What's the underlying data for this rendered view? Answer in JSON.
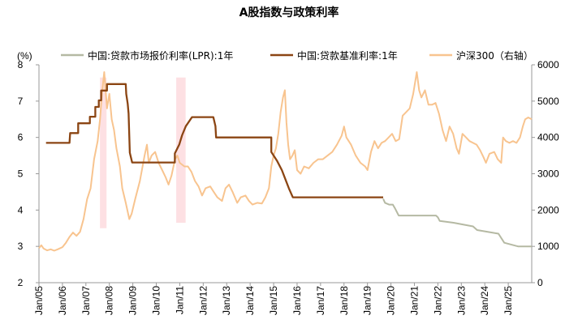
{
  "chart_data": {
    "type": "line",
    "title": "A股指数与政策利率",
    "y_left_unit": "(%)",
    "y_left_range": [
      2,
      8
    ],
    "y_left_ticks": [
      "2",
      "3",
      "4",
      "5",
      "6",
      "7",
      "8"
    ],
    "y_right_range": [
      0,
      6000
    ],
    "y_right_ticks": [
      "0",
      "1000",
      "2000",
      "3000",
      "4000",
      "5000",
      "6000"
    ],
    "x_range": [
      2005.0,
      2026.0
    ],
    "x_ticks": [
      {
        "x": 2005.0,
        "label": "Jan/05"
      },
      {
        "x": 2006.0,
        "label": "Jan/06"
      },
      {
        "x": 2007.0,
        "label": "Jan/07"
      },
      {
        "x": 2008.0,
        "label": "Jan/08"
      },
      {
        "x": 2009.0,
        "label": "Jan/09"
      },
      {
        "x": 2010.0,
        "label": "Jan/10"
      },
      {
        "x": 2011.0,
        "label": "Jan/11"
      },
      {
        "x": 2012.0,
        "label": "Jan/12"
      },
      {
        "x": 2013.0,
        "label": "Jan/13"
      },
      {
        "x": 2014.0,
        "label": "Jan/14"
      },
      {
        "x": 2015.0,
        "label": "Jan/15"
      },
      {
        "x": 2016.0,
        "label": "Jan/16"
      },
      {
        "x": 2017.0,
        "label": "Jan/17"
      },
      {
        "x": 2018.0,
        "label": "Jan/18"
      },
      {
        "x": 2019.0,
        "label": "Jan/19"
      },
      {
        "x": 2020.0,
        "label": "Jan/20"
      },
      {
        "x": 2021.0,
        "label": "Jan/21"
      },
      {
        "x": 2022.0,
        "label": "Jan/22"
      },
      {
        "x": 2023.0,
        "label": "Jan/23"
      },
      {
        "x": 2024.0,
        "label": "Jan/24"
      },
      {
        "x": 2025.0,
        "label": "Jan/25"
      }
    ],
    "shaded_periods": [
      {
        "start": 2007.6,
        "end": 2007.88
      },
      {
        "start": 2010.85,
        "end": 2011.25
      }
    ],
    "shade_color": "#fde0e3",
    "series": [
      {
        "name": "中国:贷款市场报价利率(LPR):1年",
        "axis": "left",
        "color": "#b5b9a3",
        "points": [
          [
            2019.67,
            4.31
          ],
          [
            2019.75,
            4.2
          ],
          [
            2019.92,
            4.15
          ],
          [
            2020.08,
            4.15
          ],
          [
            2020.17,
            4.05
          ],
          [
            2020.33,
            3.85
          ],
          [
            2021.92,
            3.85
          ],
          [
            2022.0,
            3.8
          ],
          [
            2022.08,
            3.7
          ],
          [
            2022.67,
            3.65
          ],
          [
            2023.5,
            3.55
          ],
          [
            2023.67,
            3.45
          ],
          [
            2024.58,
            3.35
          ],
          [
            2024.83,
            3.1
          ],
          [
            2025.42,
            3.0
          ],
          [
            2026.0,
            3.0
          ]
        ]
      },
      {
        "name": "中国:贷款基准利率:1年",
        "axis": "left",
        "color": "#8b4513",
        "points": [
          [
            2005.3,
            5.85
          ],
          [
            2006.3,
            5.85
          ],
          [
            2006.33,
            6.12
          ],
          [
            2006.67,
            6.12
          ],
          [
            2006.67,
            6.39
          ],
          [
            2007.17,
            6.39
          ],
          [
            2007.17,
            6.57
          ],
          [
            2007.4,
            6.57
          ],
          [
            2007.4,
            6.84
          ],
          [
            2007.55,
            6.84
          ],
          [
            2007.55,
            7.02
          ],
          [
            2007.65,
            7.02
          ],
          [
            2007.65,
            7.29
          ],
          [
            2007.9,
            7.29
          ],
          [
            2007.9,
            7.47
          ],
          [
            2008.7,
            7.47
          ],
          [
            2008.72,
            7.2
          ],
          [
            2008.78,
            6.93
          ],
          [
            2008.82,
            6.66
          ],
          [
            2008.87,
            5.58
          ],
          [
            2008.97,
            5.31
          ],
          [
            2010.79,
            5.31
          ],
          [
            2010.79,
            5.56
          ],
          [
            2010.98,
            5.81
          ],
          [
            2011.1,
            6.06
          ],
          [
            2011.26,
            6.31
          ],
          [
            2011.52,
            6.56
          ],
          [
            2012.43,
            6.56
          ],
          [
            2012.52,
            6.31
          ],
          [
            2012.55,
            6.0
          ],
          [
            2014.9,
            6.0
          ],
          [
            2014.9,
            5.6
          ],
          [
            2015.15,
            5.35
          ],
          [
            2015.35,
            5.1
          ],
          [
            2015.5,
            4.85
          ],
          [
            2015.65,
            4.6
          ],
          [
            2015.82,
            4.35
          ],
          [
            2019.67,
            4.35
          ]
        ]
      },
      {
        "name": "沪深300（右轴）",
        "axis": "right",
        "color": "#f8c48f",
        "points": [
          [
            2005.0,
            950
          ],
          [
            2005.1,
            1030
          ],
          [
            2005.2,
            940
          ],
          [
            2005.35,
            890
          ],
          [
            2005.5,
            920
          ],
          [
            2005.65,
            880
          ],
          [
            2005.8,
            920
          ],
          [
            2006.0,
            980
          ],
          [
            2006.15,
            1100
          ],
          [
            2006.3,
            1260
          ],
          [
            2006.45,
            1380
          ],
          [
            2006.6,
            1290
          ],
          [
            2006.75,
            1400
          ],
          [
            2006.9,
            1750
          ],
          [
            2007.05,
            2300
          ],
          [
            2007.2,
            2600
          ],
          [
            2007.35,
            3400
          ],
          [
            2007.5,
            3900
          ],
          [
            2007.6,
            4500
          ],
          [
            2007.7,
            5300
          ],
          [
            2007.78,
            5800
          ],
          [
            2007.84,
            5300
          ],
          [
            2007.9,
            4800
          ],
          [
            2008.0,
            5200
          ],
          [
            2008.1,
            4500
          ],
          [
            2008.2,
            4200
          ],
          [
            2008.3,
            3700
          ],
          [
            2008.45,
            3200
          ],
          [
            2008.55,
            2600
          ],
          [
            2008.7,
            2200
          ],
          [
            2008.85,
            1750
          ],
          [
            2008.95,
            1900
          ],
          [
            2009.1,
            2300
          ],
          [
            2009.3,
            2800
          ],
          [
            2009.5,
            3500
          ],
          [
            2009.6,
            3800
          ],
          [
            2009.68,
            3300
          ],
          [
            2009.8,
            3500
          ],
          [
            2009.95,
            3600
          ],
          [
            2010.1,
            3300
          ],
          [
            2010.25,
            3100
          ],
          [
            2010.4,
            2900
          ],
          [
            2010.52,
            2700
          ],
          [
            2010.65,
            2950
          ],
          [
            2010.8,
            3400
          ],
          [
            2010.9,
            3500
          ],
          [
            2011.0,
            3300
          ],
          [
            2011.2,
            3200
          ],
          [
            2011.35,
            3200
          ],
          [
            2011.5,
            3050
          ],
          [
            2011.65,
            2800
          ],
          [
            2011.8,
            2650
          ],
          [
            2011.95,
            2400
          ],
          [
            2012.1,
            2600
          ],
          [
            2012.3,
            2650
          ],
          [
            2012.45,
            2500
          ],
          [
            2012.6,
            2350
          ],
          [
            2012.8,
            2250
          ],
          [
            2012.95,
            2600
          ],
          [
            2013.1,
            2700
          ],
          [
            2013.25,
            2500
          ],
          [
            2013.45,
            2200
          ],
          [
            2013.6,
            2350
          ],
          [
            2013.8,
            2400
          ],
          [
            2013.95,
            2250
          ],
          [
            2014.1,
            2150
          ],
          [
            2014.3,
            2200
          ],
          [
            2014.5,
            2180
          ],
          [
            2014.65,
            2350
          ],
          [
            2014.8,
            2600
          ],
          [
            2014.9,
            3200
          ],
          [
            2015.0,
            3500
          ],
          [
            2015.1,
            3700
          ],
          [
            2015.2,
            4100
          ],
          [
            2015.3,
            4700
          ],
          [
            2015.4,
            5100
          ],
          [
            2015.48,
            5300
          ],
          [
            2015.55,
            4400
          ],
          [
            2015.62,
            3800
          ],
          [
            2015.7,
            3400
          ],
          [
            2015.8,
            3500
          ],
          [
            2015.9,
            3650
          ],
          [
            2016.0,
            3100
          ],
          [
            2016.15,
            3000
          ],
          [
            2016.3,
            3200
          ],
          [
            2016.5,
            3150
          ],
          [
            2016.7,
            3300
          ],
          [
            2016.9,
            3400
          ],
          [
            2017.1,
            3400
          ],
          [
            2017.3,
            3500
          ],
          [
            2017.5,
            3600
          ],
          [
            2017.7,
            3800
          ],
          [
            2017.9,
            4050
          ],
          [
            2018.0,
            4300
          ],
          [
            2018.1,
            4000
          ],
          [
            2018.3,
            3800
          ],
          [
            2018.5,
            3500
          ],
          [
            2018.7,
            3300
          ],
          [
            2018.9,
            3200
          ],
          [
            2019.0,
            3100
          ],
          [
            2019.15,
            3600
          ],
          [
            2019.3,
            3900
          ],
          [
            2019.45,
            3700
          ],
          [
            2019.6,
            3850
          ],
          [
            2019.75,
            3900
          ],
          [
            2019.9,
            4000
          ],
          [
            2020.05,
            4100
          ],
          [
            2020.2,
            3900
          ],
          [
            2020.35,
            3950
          ],
          [
            2020.5,
            4600
          ],
          [
            2020.65,
            4700
          ],
          [
            2020.8,
            4800
          ],
          [
            2020.95,
            5200
          ],
          [
            2021.1,
            5800
          ],
          [
            2021.2,
            5300
          ],
          [
            2021.3,
            5100
          ],
          [
            2021.45,
            5300
          ],
          [
            2021.6,
            4900
          ],
          [
            2021.75,
            4900
          ],
          [
            2021.9,
            4950
          ],
          [
            2022.05,
            4650
          ],
          [
            2022.2,
            4200
          ],
          [
            2022.35,
            3900
          ],
          [
            2022.5,
            4300
          ],
          [
            2022.65,
            4100
          ],
          [
            2022.8,
            3700
          ],
          [
            2022.9,
            3550
          ],
          [
            2023.05,
            4100
          ],
          [
            2023.2,
            4000
          ],
          [
            2023.35,
            3900
          ],
          [
            2023.5,
            3850
          ],
          [
            2023.65,
            3800
          ],
          [
            2023.8,
            3650
          ],
          [
            2023.95,
            3450
          ],
          [
            2024.05,
            3300
          ],
          [
            2024.2,
            3550
          ],
          [
            2024.4,
            3600
          ],
          [
            2024.55,
            3400
          ],
          [
            2024.7,
            3300
          ],
          [
            2024.78,
            4000
          ],
          [
            2024.9,
            3900
          ],
          [
            2025.05,
            3850
          ],
          [
            2025.2,
            3900
          ],
          [
            2025.35,
            3850
          ],
          [
            2025.5,
            4000
          ],
          [
            2025.62,
            4300
          ],
          [
            2025.72,
            4500
          ],
          [
            2025.85,
            4550
          ],
          [
            2026.0,
            4500
          ]
        ]
      }
    ]
  }
}
